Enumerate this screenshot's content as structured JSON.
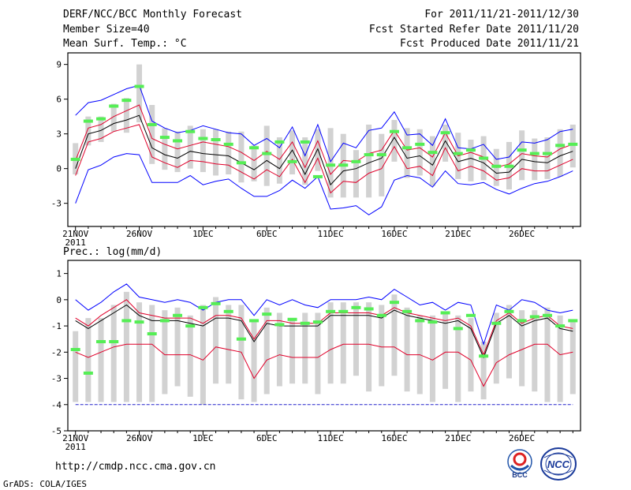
{
  "header": {
    "title": "DERF/NCC/BCC Monthly Forecast",
    "member_size": "Member Size=40",
    "variable": "Mean Surf. Temp.: °C",
    "period": "For 2011/11/21-2011/12/30",
    "started": "Fcst Started Refer Date 2011/11/20",
    "produced": "Fcst Produced Date 2011/11/21"
  },
  "footer": {
    "url": "http://cmdp.ncc.cma.gov.cn",
    "grads": "GrADS: COLA/IGES",
    "logo_bcc": "BCC",
    "logo_ncc": "NCC"
  },
  "colors": {
    "max_line": "#0000ff",
    "mean_line": "#000000",
    "spread_line": "#e0002a",
    "box": "#d2d2d2",
    "observed": "#55ee55",
    "floor_line": "#2222cc"
  },
  "chart_data": [
    {
      "type": "line",
      "title": "Mean Surf. Temp.: °C",
      "ylim": [
        -5,
        10
      ],
      "yticks": [
        -3,
        0,
        3,
        6,
        9
      ],
      "xtick_labels": [
        "21NOV",
        "26NOV",
        "1DEC",
        "6DEC",
        "11DEC",
        "16DEC",
        "21DEC",
        "26DEC"
      ],
      "xtick_indices": [
        0,
        5,
        10,
        15,
        20,
        25,
        30,
        35
      ],
      "year_label": "2011",
      "x": [
        "11/21",
        "11/22",
        "11/23",
        "11/24",
        "11/25",
        "11/26",
        "11/27",
        "11/28",
        "11/29",
        "11/30",
        "12/01",
        "12/02",
        "12/03",
        "12/04",
        "12/05",
        "12/06",
        "12/07",
        "12/08",
        "12/09",
        "12/10",
        "12/11",
        "12/12",
        "12/13",
        "12/14",
        "12/15",
        "12/16",
        "12/17",
        "12/18",
        "12/19",
        "12/20",
        "12/21",
        "12/22",
        "12/23",
        "12/24",
        "12/25",
        "12/26",
        "12/27",
        "12/28",
        "12/29",
        "12/30"
      ],
      "series": [
        {
          "name": "ensemble max",
          "values": [
            4.6,
            5.7,
            5.9,
            6.4,
            6.9,
            7.2,
            4.1,
            3.5,
            3.1,
            3.3,
            3.7,
            3.4,
            3.1,
            3.0,
            2.0,
            2.6,
            1.8,
            3.6,
            1.1,
            3.8,
            0.6,
            2.2,
            1.8,
            3.3,
            3.5,
            4.9,
            2.9,
            3.0,
            2.0,
            4.3,
            1.8,
            1.7,
            2.1,
            0.8,
            1.0,
            2.3,
            2.2,
            2.5,
            3.2,
            3.4
          ]
        },
        {
          "name": "upper spread",
          "values": [
            0.7,
            3.5,
            3.8,
            4.5,
            5.0,
            5.5,
            2.6,
            2.1,
            1.7,
            2.0,
            2.3,
            2.1,
            1.9,
            1.4,
            0.7,
            1.5,
            0.8,
            2.3,
            0.1,
            2.4,
            -0.5,
            0.7,
            0.6,
            1.3,
            1.6,
            3.3,
            1.6,
            1.8,
            1.0,
            3.1,
            1.1,
            1.4,
            1.0,
            0.1,
            0.4,
            1.3,
            1.1,
            1.0,
            1.7,
            2.1
          ]
        },
        {
          "name": "ensemble mean",
          "values": [
            0.0,
            3.0,
            3.3,
            3.9,
            4.2,
            4.6,
            1.8,
            1.2,
            0.9,
            1.5,
            1.3,
            1.2,
            1.1,
            0.5,
            -0.1,
            0.7,
            0.0,
            1.6,
            -0.5,
            1.7,
            -1.4,
            -0.2,
            0.0,
            0.5,
            0.9,
            2.7,
            0.9,
            1.1,
            0.3,
            2.4,
            0.6,
            0.9,
            0.5,
            -0.4,
            -0.3,
            0.8,
            0.6,
            0.5,
            1.1,
            1.5
          ]
        },
        {
          "name": "lower spread",
          "values": [
            -0.6,
            2.3,
            2.6,
            3.2,
            3.5,
            3.8,
            1.0,
            0.5,
            0.1,
            0.7,
            0.6,
            0.4,
            0.3,
            -0.3,
            -0.9,
            -0.1,
            -0.7,
            0.8,
            -1.2,
            0.9,
            -2.1,
            -1.1,
            -1.2,
            -0.4,
            0.0,
            1.9,
            0.0,
            0.2,
            -0.6,
            1.8,
            -0.2,
            0.2,
            -0.2,
            -1.0,
            -0.8,
            0.0,
            -0.2,
            -0.2,
            0.3,
            0.8
          ]
        },
        {
          "name": "ensemble min",
          "values": [
            -3.0,
            -0.1,
            0.3,
            1.0,
            1.3,
            1.2,
            -1.2,
            -1.2,
            -1.2,
            -0.6,
            -1.4,
            -1.1,
            -0.9,
            -1.7,
            -2.4,
            -2.4,
            -1.9,
            -1.0,
            -1.7,
            -0.7,
            -3.5,
            -3.4,
            -3.2,
            -4.0,
            -3.3,
            -1.0,
            -0.6,
            -0.8,
            -1.6,
            -0.2,
            -1.3,
            -1.4,
            -1.2,
            -1.8,
            -2.2,
            -1.7,
            -1.3,
            -1.1,
            -0.7,
            -0.2
          ]
        },
        {
          "name": "box top",
          "values": [
            2.2,
            4.5,
            4.5,
            5.6,
            6.1,
            9.0,
            5.5,
            3.5,
            3.2,
            3.7,
            3.4,
            3.4,
            3.2,
            3.2,
            2.0,
            3.7,
            2.7,
            3.3,
            2.7,
            3.4,
            3.5,
            3.0,
            1.6,
            3.8,
            3.0,
            4.2,
            3.5,
            3.4,
            2.8,
            3.8,
            3.1,
            2.5,
            2.8,
            1.7,
            2.3,
            3.3,
            2.6,
            2.7,
            3.4,
            3.8
          ]
        },
        {
          "name": "box bottom",
          "values": [
            -0.5,
            2.0,
            2.3,
            3.2,
            3.1,
            4.0,
            0.4,
            -0.1,
            -0.3,
            0.0,
            -0.3,
            -0.6,
            -0.5,
            -1.2,
            -1.1,
            -1.5,
            -1.3,
            -0.5,
            -1.4,
            -0.2,
            -2.5,
            -2.5,
            -2.5,
            -2.5,
            -2.4,
            0.6,
            -0.8,
            -0.6,
            -1.5,
            0.6,
            -0.9,
            -1.1,
            -1.0,
            -1.5,
            -1.8,
            -1.0,
            -1.0,
            -0.9,
            -0.7,
            0.1
          ]
        },
        {
          "name": "observed",
          "values": [
            0.8,
            4.1,
            4.3,
            5.4,
            5.9,
            7.1,
            3.8,
            2.7,
            2.4,
            3.2,
            2.6,
            2.5,
            2.1,
            0.5,
            1.8,
            1.3,
            2.3,
            0.6,
            2.3,
            -0.7,
            0.3,
            0.3,
            0.6,
            1.2,
            1.2,
            3.2,
            1.8,
            2.1,
            1.4,
            3.1,
            1.3,
            1.6,
            0.9,
            0.2,
            0.2,
            1.6,
            1.3,
            1.3,
            2.0,
            2.1
          ]
        }
      ]
    },
    {
      "type": "line",
      "title": "Prec.: log(mm/d)",
      "ylim": [
        -5,
        1.5
      ],
      "yticks": [
        -5,
        -4,
        -3,
        -2,
        -1,
        0,
        1
      ],
      "xtick_labels": [
        "21NOV",
        "26NOV",
        "1DEC",
        "6DEC",
        "11DEC",
        "16DEC",
        "21DEC",
        "26DEC"
      ],
      "xtick_indices": [
        0,
        5,
        10,
        15,
        20,
        25,
        30,
        35
      ],
      "year_label": "2011",
      "x": [
        "11/21",
        "11/22",
        "11/23",
        "11/24",
        "11/25",
        "11/26",
        "11/27",
        "11/28",
        "11/29",
        "11/30",
        "12/01",
        "12/02",
        "12/03",
        "12/04",
        "12/05",
        "12/06",
        "12/07",
        "12/08",
        "12/09",
        "12/10",
        "12/11",
        "12/12",
        "12/13",
        "12/14",
        "12/15",
        "12/16",
        "12/17",
        "12/18",
        "12/19",
        "12/20",
        "12/21",
        "12/22",
        "12/23",
        "12/24",
        "12/25",
        "12/26",
        "12/27",
        "12/28",
        "12/29",
        "12/30"
      ],
      "series": [
        {
          "name": "ensemble max",
          "values": [
            0.0,
            -0.4,
            -0.1,
            0.3,
            0.6,
            0.1,
            0.0,
            -0.1,
            0.0,
            -0.1,
            -0.4,
            -0.1,
            0.0,
            0.0,
            -0.6,
            0.0,
            -0.2,
            0.0,
            -0.2,
            -0.3,
            0.0,
            0.0,
            0.0,
            0.1,
            0.0,
            0.4,
            0.1,
            -0.2,
            -0.1,
            -0.4,
            -0.1,
            -0.2,
            -1.7,
            -0.2,
            -0.4,
            0.0,
            -0.1,
            -0.4,
            -0.5,
            -0.4
          ]
        },
        {
          "name": "upper spread",
          "values": [
            -0.7,
            -1.0,
            -0.6,
            -0.3,
            0.0,
            -0.5,
            -0.6,
            -0.7,
            -0.7,
            -0.7,
            -0.9,
            -0.6,
            -0.6,
            -0.7,
            -1.5,
            -0.8,
            -0.8,
            -0.9,
            -0.9,
            -0.9,
            -0.5,
            -0.5,
            -0.5,
            -0.5,
            -0.6,
            -0.3,
            -0.5,
            -0.6,
            -0.7,
            -0.8,
            -0.7,
            -1.0,
            -2.1,
            -0.8,
            -0.5,
            -0.9,
            -0.7,
            -0.6,
            -1.0,
            -1.1
          ]
        },
        {
          "name": "ensemble mean",
          "values": [
            -0.8,
            -1.1,
            -0.8,
            -0.5,
            -0.2,
            -0.6,
            -0.8,
            -0.8,
            -0.8,
            -0.9,
            -1.0,
            -0.7,
            -0.7,
            -0.8,
            -1.6,
            -0.9,
            -1.0,
            -1.0,
            -1.0,
            -1.0,
            -0.6,
            -0.6,
            -0.6,
            -0.6,
            -0.7,
            -0.4,
            -0.6,
            -0.7,
            -0.8,
            -0.9,
            -0.8,
            -1.1,
            -2.2,
            -0.9,
            -0.6,
            -1.0,
            -0.8,
            -0.7,
            -1.1,
            -1.2
          ]
        },
        {
          "name": "lower spread",
          "values": [
            -2.0,
            -2.2,
            -2.0,
            -1.8,
            -1.7,
            -1.7,
            -1.7,
            -2.1,
            -2.1,
            -2.1,
            -2.3,
            -1.8,
            -1.9,
            -2.0,
            -3.0,
            -2.3,
            -2.1,
            -2.2,
            -2.2,
            -2.2,
            -1.9,
            -1.7,
            -1.7,
            -1.7,
            -1.8,
            -1.8,
            -2.1,
            -2.1,
            -2.3,
            -2.0,
            -2.0,
            -2.3,
            -3.3,
            -2.4,
            -2.1,
            -1.9,
            -1.7,
            -1.7,
            -2.1,
            -2.0
          ]
        },
        {
          "name": "floor",
          "values": [
            -4,
            -4,
            -4,
            -4,
            -4,
            -4,
            -4,
            -4,
            -4,
            -4,
            -4,
            -4,
            -4,
            -4,
            -4,
            -4,
            -4,
            -4,
            -4,
            -4,
            -4,
            -4,
            -4,
            -4,
            -4,
            -4,
            -4,
            -4,
            -4,
            -4,
            -4,
            -4,
            -4,
            -4,
            -4,
            -4,
            -4,
            -4,
            -4,
            -4
          ]
        },
        {
          "name": "box top",
          "values": [
            -1.2,
            -0.7,
            -0.7,
            -0.2,
            0.3,
            -0.1,
            -0.2,
            -0.4,
            -0.3,
            -0.6,
            -0.2,
            0.1,
            -0.2,
            -0.2,
            -0.8,
            -0.3,
            -0.5,
            -0.7,
            -0.5,
            -0.5,
            -0.1,
            -0.1,
            -0.1,
            -0.1,
            -0.2,
            0.2,
            -0.3,
            -0.6,
            -0.6,
            -0.5,
            -0.6,
            -0.7,
            -1.6,
            -0.5,
            -0.2,
            -0.4,
            -0.4,
            -0.3,
            -0.6,
            -0.8
          ]
        },
        {
          "name": "box bottom",
          "values": [
            -3.9,
            -3.9,
            -3.9,
            -3.9,
            -3.9,
            -3.9,
            -3.9,
            -3.6,
            -3.3,
            -3.7,
            -4.0,
            -3.2,
            -3.2,
            -3.8,
            -3.9,
            -3.6,
            -3.3,
            -3.2,
            -3.2,
            -3.6,
            -3.2,
            -3.2,
            -2.9,
            -3.5,
            -3.3,
            -2.9,
            -3.5,
            -3.6,
            -3.9,
            -3.4,
            -3.9,
            -3.5,
            -3.8,
            -3.2,
            -3.0,
            -3.3,
            -3.5,
            -3.9,
            -3.9,
            -3.6
          ]
        },
        {
          "name": "observed",
          "values": [
            -1.9,
            -2.8,
            -1.6,
            -1.6,
            -0.8,
            -0.85,
            -1.3,
            -0.8,
            -0.6,
            -1.0,
            -0.3,
            -0.15,
            -0.45,
            -1.5,
            -0.8,
            -0.55,
            -0.95,
            -0.75,
            -0.9,
            -0.85,
            -0.45,
            -0.45,
            -0.3,
            -0.35,
            -0.6,
            -0.1,
            -0.45,
            -0.8,
            -0.85,
            -0.5,
            -1.1,
            -0.6,
            -2.15,
            -0.9,
            -0.45,
            -0.8,
            -0.65,
            -0.6,
            -1.0,
            -0.8
          ]
        }
      ]
    }
  ]
}
